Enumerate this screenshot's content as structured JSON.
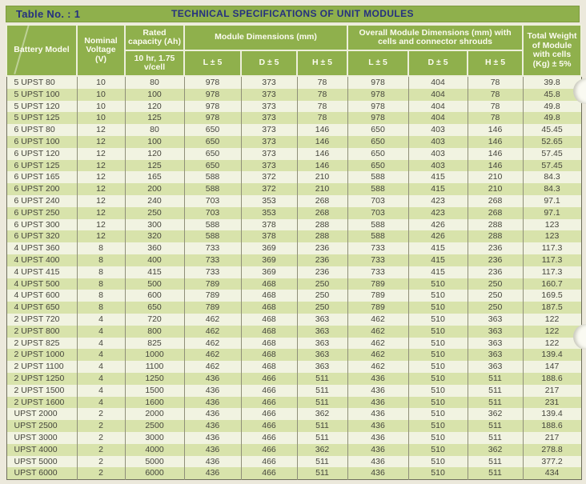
{
  "page": {
    "table_label": "Table No. : 1",
    "title": "TECHNICAL SPECIFICATIONS OF UNIT MODULES"
  },
  "colors": {
    "header_green": "#8FB04C",
    "title_text_navy": "#25317F",
    "stripe_light": "#F1F3E1",
    "stripe_green": "#D8E3AB",
    "page_background": "#ECE9DC",
    "body_text": "#45453C"
  },
  "table": {
    "headers": {
      "battery_model": "Battery Model",
      "nominal_voltage": "Nominal Voltage (V)",
      "rated_capacity": "Rated capacity (Ah)",
      "rated_capacity_sub": "10 hr, 1.75 v/cell",
      "module_dims_group": "Module Dimensions (mm)",
      "overall_dims_group": "Overall Module Dimensions (mm) with cells and connector shrouds",
      "l_col": "L ± 5",
      "d_col": "D ± 5",
      "h_col": "H ± 5",
      "total_weight": "Total Weight of Module with cells (Kg) ± 5%"
    },
    "rows": [
      [
        "5 UPST 80",
        "10",
        "80",
        "978",
        "373",
        "78",
        "978",
        "404",
        "78",
        "39.8"
      ],
      [
        "5 UPST 100",
        "10",
        "100",
        "978",
        "373",
        "78",
        "978",
        "404",
        "78",
        "45.8"
      ],
      [
        "5 UPST 120",
        "10",
        "120",
        "978",
        "373",
        "78",
        "978",
        "404",
        "78",
        "49.8"
      ],
      [
        "5 UPST 125",
        "10",
        "125",
        "978",
        "373",
        "78",
        "978",
        "404",
        "78",
        "49.8"
      ],
      [
        "6 UPST 80",
        "12",
        "80",
        "650",
        "373",
        "146",
        "650",
        "403",
        "146",
        "45.45"
      ],
      [
        "6 UPST 100",
        "12",
        "100",
        "650",
        "373",
        "146",
        "650",
        "403",
        "146",
        "52.65"
      ],
      [
        "6 UPST 120",
        "12",
        "120",
        "650",
        "373",
        "146",
        "650",
        "403",
        "146",
        "57.45"
      ],
      [
        "6 UPST 125",
        "12",
        "125",
        "650",
        "373",
        "146",
        "650",
        "403",
        "146",
        "57.45"
      ],
      [
        "6 UPST 165",
        "12",
        "165",
        "588",
        "372",
        "210",
        "588",
        "415",
        "210",
        "84.3"
      ],
      [
        "6 UPST 200",
        "12",
        "200",
        "588",
        "372",
        "210",
        "588",
        "415",
        "210",
        "84.3"
      ],
      [
        "6 UPST 240",
        "12",
        "240",
        "703",
        "353",
        "268",
        "703",
        "423",
        "268",
        "97.1"
      ],
      [
        "6 UPST 250",
        "12",
        "250",
        "703",
        "353",
        "268",
        "703",
        "423",
        "268",
        "97.1"
      ],
      [
        "6 UPST 300",
        "12",
        "300",
        "588",
        "378",
        "288",
        "588",
        "426",
        "288",
        "123"
      ],
      [
        "6 UPST 320",
        "12",
        "320",
        "588",
        "378",
        "288",
        "588",
        "426",
        "288",
        "123"
      ],
      [
        "4 UPST 360",
        "8",
        "360",
        "733",
        "369",
        "236",
        "733",
        "415",
        "236",
        "117.3"
      ],
      [
        "4 UPST 400",
        "8",
        "400",
        "733",
        "369",
        "236",
        "733",
        "415",
        "236",
        "117.3"
      ],
      [
        "4 UPST 415",
        "8",
        "415",
        "733",
        "369",
        "236",
        "733",
        "415",
        "236",
        "117.3"
      ],
      [
        "4 UPST 500",
        "8",
        "500",
        "789",
        "468",
        "250",
        "789",
        "510",
        "250",
        "160.7"
      ],
      [
        "4 UPST 600",
        "8",
        "600",
        "789",
        "468",
        "250",
        "789",
        "510",
        "250",
        "169.5"
      ],
      [
        "4 UPST 650",
        "8",
        "650",
        "789",
        "468",
        "250",
        "789",
        "510",
        "250",
        "187.5"
      ],
      [
        "2 UPST 720",
        "4",
        "720",
        "462",
        "468",
        "363",
        "462",
        "510",
        "363",
        "122"
      ],
      [
        "2 UPST 800",
        "4",
        "800",
        "462",
        "468",
        "363",
        "462",
        "510",
        "363",
        "122"
      ],
      [
        "2 UPST 825",
        "4",
        "825",
        "462",
        "468",
        "363",
        "462",
        "510",
        "363",
        "122"
      ],
      [
        "2 UPST 1000",
        "4",
        "1000",
        "462",
        "468",
        "363",
        "462",
        "510",
        "363",
        "139.4"
      ],
      [
        "2 UPST 1100",
        "4",
        "1100",
        "462",
        "468",
        "363",
        "462",
        "510",
        "363",
        "147"
      ],
      [
        "2 UPST 1250",
        "4",
        "1250",
        "436",
        "466",
        "511",
        "436",
        "510",
        "511",
        "188.6"
      ],
      [
        "2 UPST 1500",
        "4",
        "1500",
        "436",
        "466",
        "511",
        "436",
        "510",
        "511",
        "217"
      ],
      [
        "2 UPST 1600",
        "4",
        "1600",
        "436",
        "466",
        "511",
        "436",
        "510",
        "511",
        "231"
      ],
      [
        "UPST 2000",
        "2",
        "2000",
        "436",
        "466",
        "362",
        "436",
        "510",
        "362",
        "139.4"
      ],
      [
        "UPST 2500",
        "2",
        "2500",
        "436",
        "466",
        "511",
        "436",
        "510",
        "511",
        "188.6"
      ],
      [
        "UPST 3000",
        "2",
        "3000",
        "436",
        "466",
        "511",
        "436",
        "510",
        "511",
        "217"
      ],
      [
        "UPST 4000",
        "2",
        "4000",
        "436",
        "466",
        "362",
        "436",
        "510",
        "362",
        "278.8"
      ],
      [
        "UPST 5000",
        "2",
        "5000",
        "436",
        "466",
        "511",
        "436",
        "510",
        "511",
        "377.2"
      ],
      [
        "UPST 6000",
        "2",
        "6000",
        "436",
        "466",
        "511",
        "436",
        "510",
        "511",
        "434"
      ]
    ]
  }
}
